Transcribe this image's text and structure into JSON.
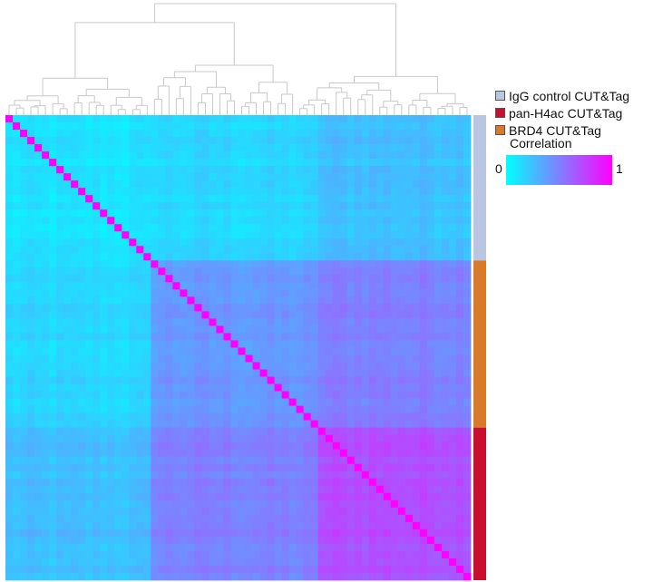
{
  "chart_data": {
    "type": "heatmap",
    "title": "",
    "n_samples": 64,
    "dendrogram": "top",
    "legend": {
      "position": "right",
      "entries": [
        {
          "label": "IgG control CUT&Tag",
          "color": "#b8c6e2"
        },
        {
          "label": "pan-H4ac CUT&Tag",
          "color": "#c8102e"
        },
        {
          "label": "BRD4 CUT&Tag",
          "color": "#d9792a"
        }
      ]
    },
    "colorbar": {
      "title": "Correlation",
      "min_label": "0",
      "max_label": "1",
      "low_color": "#00ffff",
      "high_color": "#ff00ff",
      "range": [
        0,
        1
      ]
    },
    "groups": [
      {
        "label": "IgG control CUT&Tag",
        "count": 20,
        "color": "#b8c6e2"
      },
      {
        "label": "BRD4 CUT&Tag",
        "count": 23,
        "color": "#d9792a"
      },
      {
        "label": "pan-H4ac CUT&Tag",
        "count": 21,
        "color": "#c8102e"
      }
    ],
    "correlation_levels": {
      "diagonal": 1.0,
      "igg_vs_igg": 0.1,
      "igg_vs_brd4": 0.15,
      "igg_vs_h4ac": 0.25,
      "brd4_vs_brd4": 0.4,
      "brd4_vs_h4ac": 0.5,
      "h4ac_vs_h4ac": 0.7
    }
  }
}
